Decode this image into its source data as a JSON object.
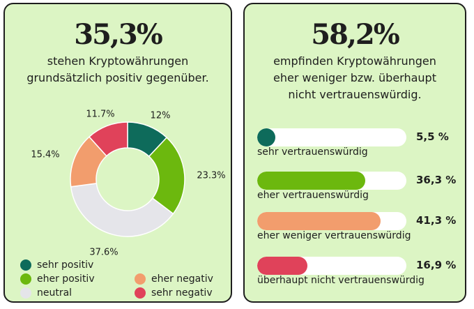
{
  "left_panel": {
    "headline": "35,3%",
    "subtitle": "stehen Kryptowährungen\ngrundsätzlich positiv gegenüber."
  },
  "right_panel": {
    "headline": "58,2%",
    "subtitle": "empfinden Kryptowährungen\neher weniger bzw. überhaupt\nnicht vertrauenswürdig."
  },
  "chart_data": [
    {
      "type": "pie",
      "donut": true,
      "categories": [
        "sehr positiv",
        "eher positiv",
        "neutral",
        "eher negativ",
        "sehr negativ"
      ],
      "values": [
        12,
        23.3,
        37.6,
        15.4,
        11.7
      ],
      "value_labels": [
        "12%",
        "23.3%",
        "37.6%",
        "15.4%",
        "11.7%"
      ],
      "colors": [
        "#0e6b5b",
        "#6cb80e",
        "#e5e5ea",
        "#f29d6d",
        "#e0425a"
      ],
      "legend": "bottom"
    },
    {
      "type": "bar",
      "orientation": "horizontal",
      "categories": [
        "sehr vertrauenswürdig",
        "eher vertrauenswürdig",
        "eher weniger vertrauenswürdig",
        "überhaupt nicht vertrauenswürdig"
      ],
      "values": [
        5.5,
        36.3,
        41.3,
        16.9
      ],
      "value_labels": [
        "5,5 %",
        "36,3 %",
        "41,3 %",
        "16,9 %"
      ],
      "colors": [
        "#0e6b5b",
        "#6cb80e",
        "#f29d6d",
        "#e0425a"
      ],
      "xlim": [
        0,
        100
      ]
    }
  ]
}
